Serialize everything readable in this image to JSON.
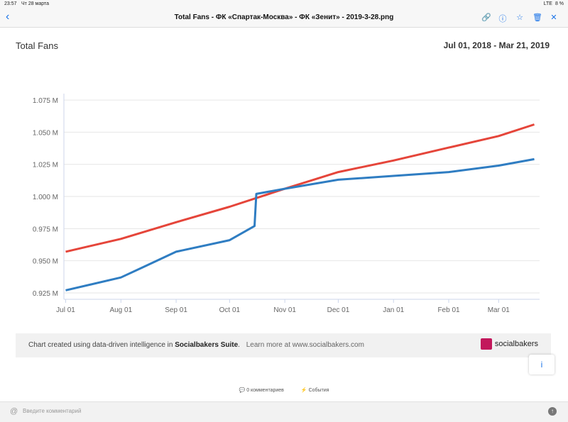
{
  "status": {
    "time": "23:57",
    "date": "Чт 28 марта",
    "network": "LTE",
    "battery": "8 %"
  },
  "nav": {
    "back": "‹",
    "title": "Total Fans - ФК «Спартак-Москва» - ФК «Зенит» - 2019-3-28.png",
    "icons": [
      "link-icon",
      "info-icon",
      "star-icon",
      "trash-icon",
      "close-icon"
    ]
  },
  "chart_data": {
    "type": "line",
    "title": "Total Fans",
    "date_range": "Jul 01, 2018 - Mar 21, 2019",
    "y_ticks": [
      "0.925 M",
      "0.950 M",
      "0.975 M",
      "1.000 M",
      "1.025 M",
      "1.050 M",
      "1.075 M"
    ],
    "ylim": [
      0.92,
      1.08
    ],
    "x_ticks": [
      "Jul 01",
      "Aug 01",
      "Sep 01",
      "Oct 01",
      "Nov 01",
      "Dec 01",
      "Jan 01",
      "Feb 01",
      "Mar 01"
    ],
    "series": [
      {
        "color": "#e5453a",
        "points": [
          [
            "2018-07-01",
            0.957
          ],
          [
            "2018-08-01",
            0.967
          ],
          [
            "2018-09-01",
            0.98
          ],
          [
            "2018-10-01",
            0.992
          ],
          [
            "2018-11-01",
            1.006
          ],
          [
            "2018-12-01",
            1.019
          ],
          [
            "2019-01-01",
            1.028
          ],
          [
            "2019-02-01",
            1.038
          ],
          [
            "2019-03-01",
            1.047
          ],
          [
            "2019-03-21",
            1.056
          ]
        ]
      },
      {
        "color": "#2f7dc2",
        "points": [
          [
            "2018-07-01",
            0.927
          ],
          [
            "2018-08-01",
            0.937
          ],
          [
            "2018-08-15",
            0.946
          ],
          [
            "2018-09-01",
            0.957
          ],
          [
            "2018-10-01",
            0.966
          ],
          [
            "2018-10-15",
            0.977
          ],
          [
            "2018-10-16",
            1.002
          ],
          [
            "2018-11-01",
            1.006
          ],
          [
            "2018-12-01",
            1.013
          ],
          [
            "2019-01-01",
            1.016
          ],
          [
            "2019-02-01",
            1.019
          ],
          [
            "2019-03-01",
            1.024
          ],
          [
            "2019-03-21",
            1.029
          ]
        ]
      }
    ],
    "grid": "horizontal"
  },
  "footer": {
    "text_pre": "Chart created using data-driven intelligence in ",
    "text_brand": "Socialbakers Suite",
    "text_post": ".",
    "link": "Learn more at www.socialbakers.com",
    "logo": "socialbakers"
  },
  "info_button": "i",
  "actions": {
    "comments": "0 комментариев",
    "events": "События"
  },
  "comment": {
    "at": "@",
    "placeholder": "Введите комментарий",
    "send": "↑"
  }
}
